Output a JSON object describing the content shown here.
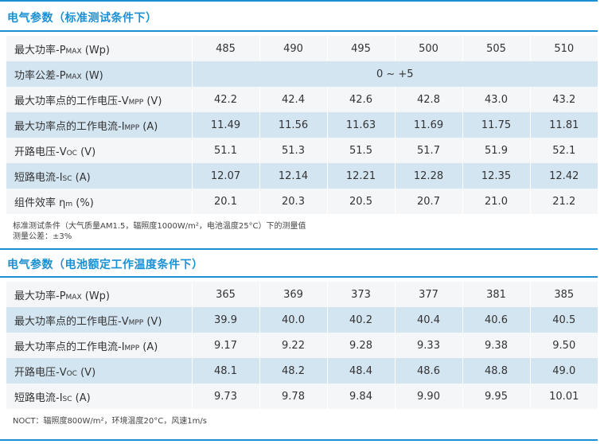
{
  "stc": {
    "title": "电气参数（标准测试条件下）",
    "rows": [
      {
        "label": "最大功率-P",
        "sub": "MAX",
        "suffix": " (Wp)",
        "values": [
          "485",
          "490",
          "495",
          "500",
          "505",
          "510"
        ]
      },
      {
        "label": "功率公差-P",
        "sub": "MAX",
        "suffix": " (W)",
        "span": "0 ~ +5"
      },
      {
        "label": "最大功率点的工作电压-V",
        "sub": "MPP",
        "suffix": " (V)",
        "values": [
          "42.2",
          "42.4",
          "42.6",
          "42.8",
          "43.0",
          "43.2"
        ]
      },
      {
        "label": "最大功率点的工作电流-I",
        "sub": "MPP",
        "suffix": " (A)",
        "values": [
          "11.49",
          "11.56",
          "11.63",
          "11.69",
          "11.75",
          "11.81"
        ]
      },
      {
        "label": "开路电压-V",
        "sub": "OC",
        "suffix": " (V)",
        "values": [
          "51.1",
          "51.3",
          "51.5",
          "51.7",
          "51.9",
          "52.1"
        ]
      },
      {
        "label": "短路电流-I",
        "sub": "SC",
        "suffix": " (A)",
        "values": [
          "12.07",
          "12.14",
          "12.21",
          "12.28",
          "12.35",
          "12.42"
        ]
      },
      {
        "label": "组件效率 η",
        "sub": "m",
        "suffix": " (%)",
        "values": [
          "20.1",
          "20.3",
          "20.5",
          "20.7",
          "21.0",
          "21.2"
        ]
      }
    ],
    "notes": [
      "标准测试条件（大气质量AM1.5，辐照度1000W/m²，电池温度25°C）下的测量值",
      "测量公差：±3%"
    ]
  },
  "noct": {
    "title": "电气参数（电池额定工作温度条件下）",
    "rows": [
      {
        "label": "最大功率-P",
        "sub": "MAX",
        "suffix": " (Wp)",
        "values": [
          "365",
          "369",
          "373",
          "377",
          "381",
          "385"
        ]
      },
      {
        "label": "最大功率点的工作电压-V",
        "sub": "MPP",
        "suffix": " (V)",
        "values": [
          "39.9",
          "40.0",
          "40.2",
          "40.4",
          "40.6",
          "40.5"
        ]
      },
      {
        "label": "最大功率点的工作电流-I",
        "sub": "MPP",
        "suffix": " (A)",
        "values": [
          "9.17",
          "9.22",
          "9.28",
          "9.33",
          "9.38",
          "9.50"
        ]
      },
      {
        "label": "开路电压-V",
        "sub": "OC",
        "suffix": " (V)",
        "values": [
          "48.1",
          "48.2",
          "48.4",
          "48.6",
          "48.8",
          "49.0"
        ]
      },
      {
        "label": "短路电流-I",
        "sub": "SC",
        "suffix": " (A)",
        "values": [
          "9.73",
          "9.78",
          "9.84",
          "9.90",
          "9.95",
          "10.01"
        ]
      }
    ],
    "notes": [
      "NOCT：辐照度800W/m²，环境温度20°C，风速1m/s"
    ]
  }
}
